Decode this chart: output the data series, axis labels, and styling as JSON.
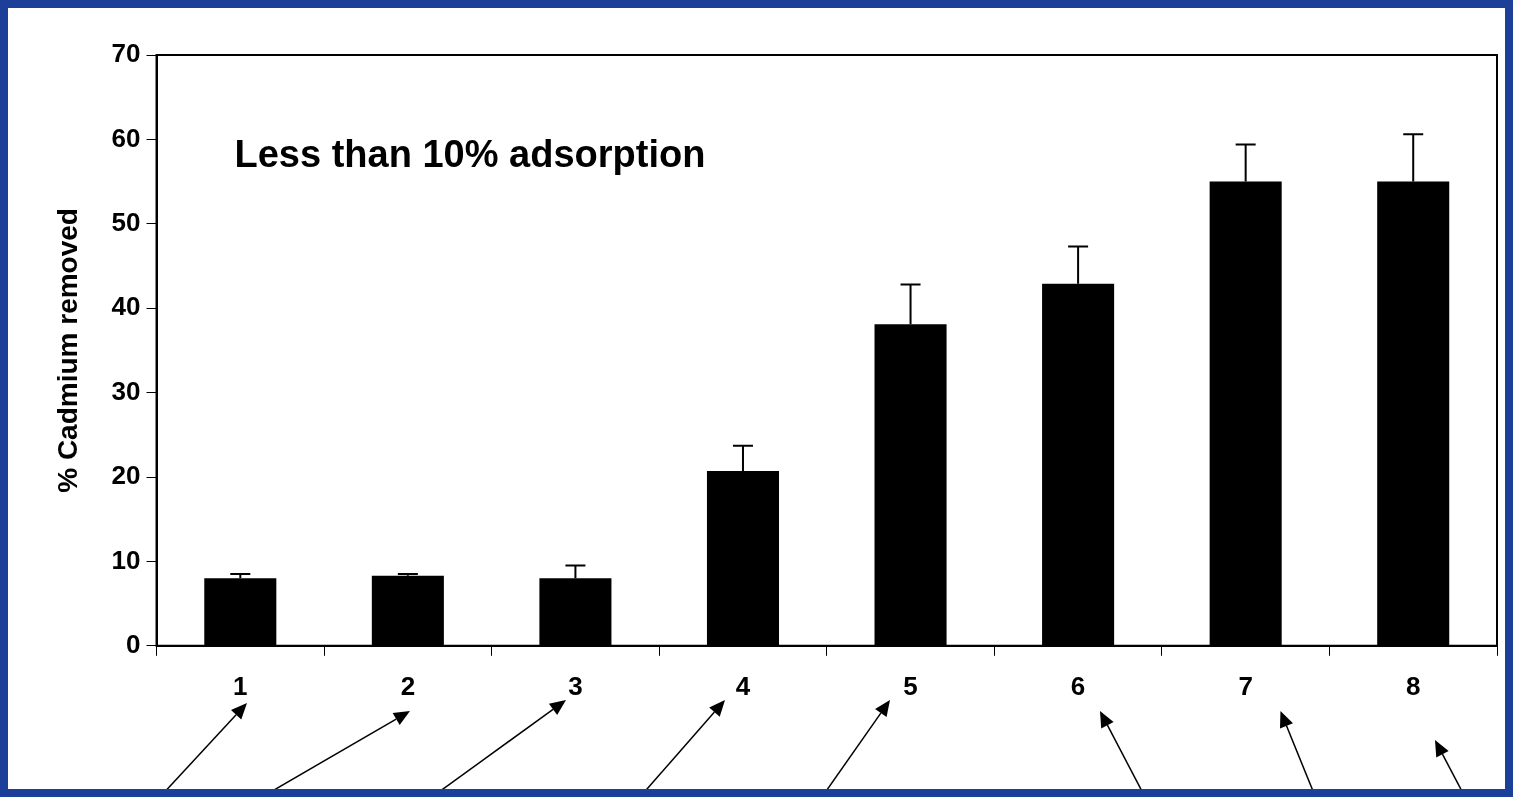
{
  "chart_data": {
    "type": "bar",
    "ylabel": "% Cadmium removed",
    "annotations": [
      "Less than 10% adsorption"
    ],
    "categories": [
      "1",
      "2",
      "3",
      "4",
      "5",
      "6",
      "7",
      "8"
    ],
    "values": [
      8.0,
      8.3,
      8.0,
      20.7,
      38.1,
      42.9,
      55.0,
      55.0
    ],
    "errors": [
      [
        8.0,
        8.5
      ],
      [
        8.3,
        8.5
      ],
      [
        8.0,
        9.5
      ],
      [
        20.7,
        23.7
      ],
      [
        38.1,
        42.8
      ],
      [
        42.9,
        47.3
      ],
      [
        55.0,
        59.4
      ],
      [
        55.0,
        60.6
      ]
    ],
    "color": "#000000",
    "ylim": [
      0,
      70
    ],
    "yticks": [
      0,
      10,
      20,
      30,
      40,
      50,
      60,
      70
    ],
    "grid": false,
    "legend": false
  }
}
